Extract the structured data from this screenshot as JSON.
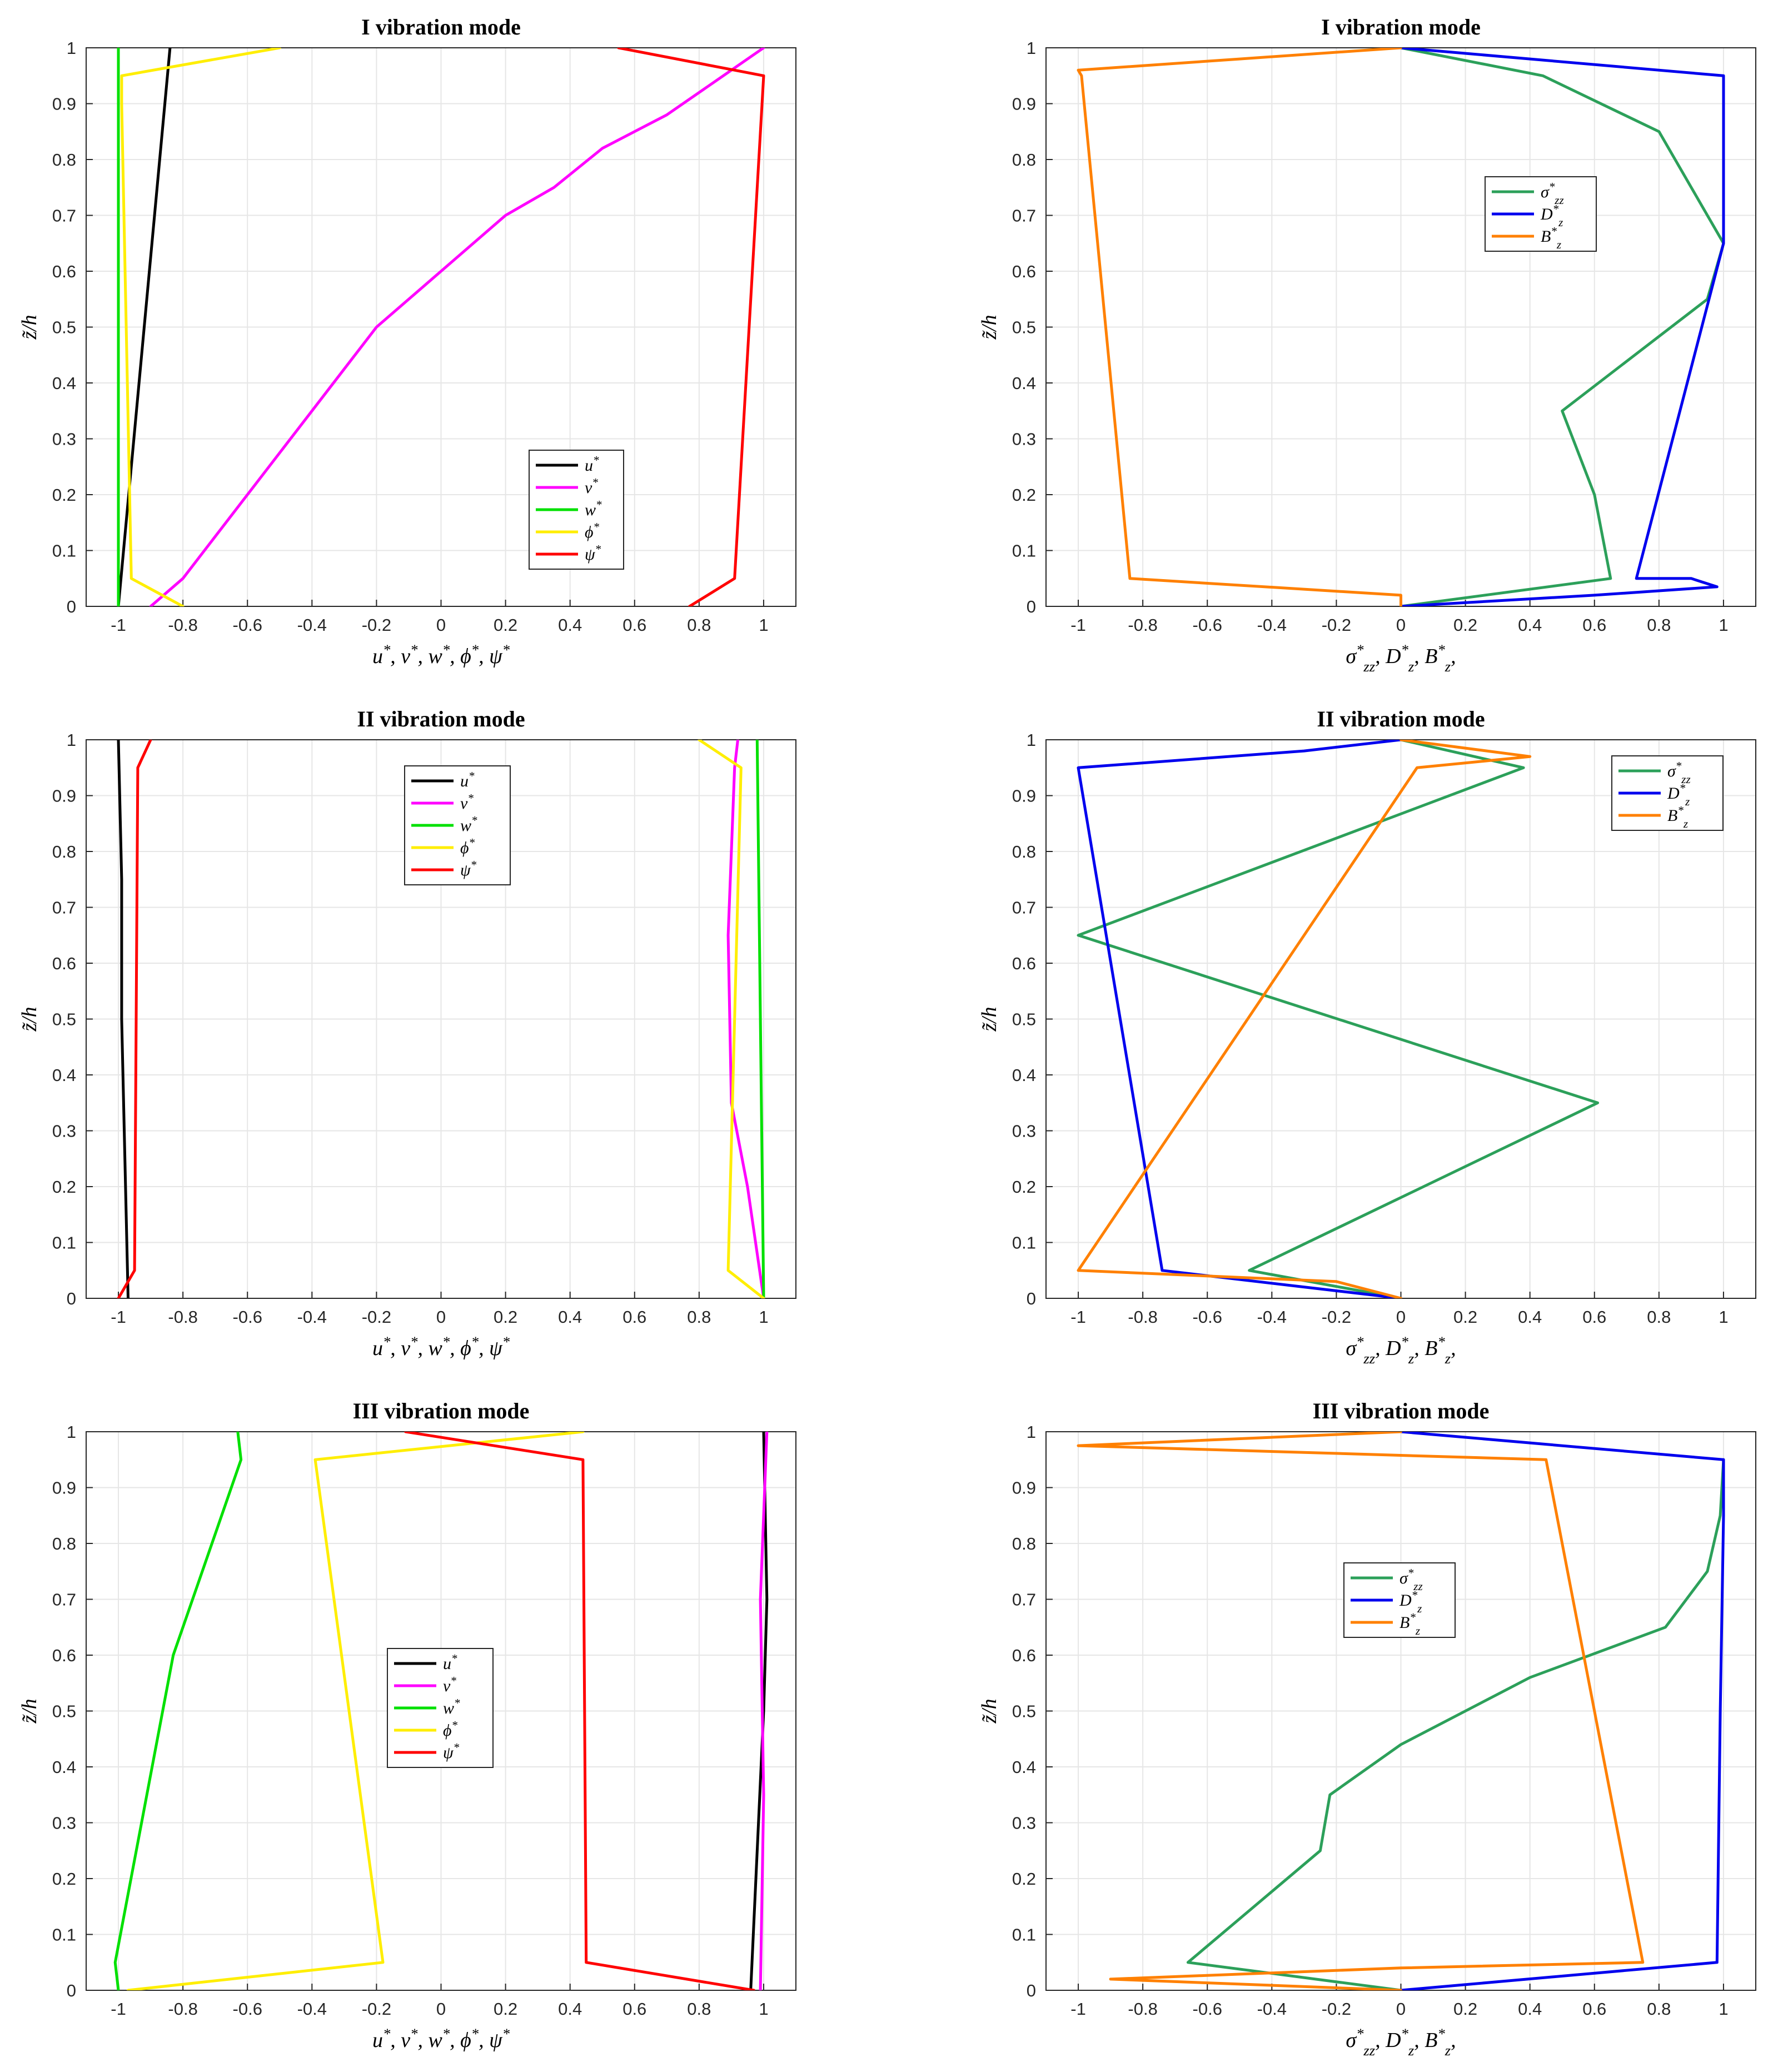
{
  "chart_data": [
    {
      "id": "p1",
      "type": "line",
      "title": "I vibration mode",
      "xlabel": "u*, v*, w*, ϕ*, ψ*",
      "ylabel": "z̃/h",
      "xlim": [
        -1.1,
        1.1
      ],
      "ylim": [
        0,
        1
      ],
      "xticks": [
        "-1",
        "-0.8",
        "-0.6",
        "-0.4",
        "-0.2",
        "0",
        "0.2",
        "0.4",
        "0.6",
        "0.8",
        "1"
      ],
      "yticks": [
        "0",
        "0.1",
        "0.2",
        "0.3",
        "0.4",
        "0.5",
        "0.6",
        "0.7",
        "0.8",
        "0.9",
        "1"
      ],
      "grid": true,
      "legend_position": "lower-right",
      "series": [
        {
          "name": "u*",
          "color": "#000000",
          "x": [
            -1.0,
            -0.84
          ],
          "y": [
            0,
            1
          ]
        },
        {
          "name": "v*",
          "color": "#ff00ff",
          "x": [
            -0.9,
            -0.8,
            -0.6,
            -0.4,
            -0.2,
            0.0,
            0.2,
            0.35,
            0.5,
            0.7,
            0.85,
            1.0
          ],
          "y": [
            0,
            0.05,
            0.2,
            0.35,
            0.5,
            0.6,
            0.7,
            0.75,
            0.82,
            0.88,
            0.94,
            1.0
          ]
        },
        {
          "name": "w*",
          "color": "#00e000",
          "x": [
            -1.0,
            -1.0
          ],
          "y": [
            0,
            1
          ]
        },
        {
          "name": "ϕ*",
          "color": "#ffee00",
          "x": [
            -0.8,
            -0.96,
            -0.99,
            -0.99,
            -0.5
          ],
          "y": [
            0,
            0.05,
            0.9,
            0.95,
            1.0
          ]
        },
        {
          "name": "ψ*",
          "color": "#ff0000",
          "x": [
            0.77,
            0.91,
            1.0,
            0.55
          ],
          "y": [
            0,
            0.05,
            0.95,
            1.0
          ]
        }
      ]
    },
    {
      "id": "p2",
      "type": "line",
      "title": "I vibration mode",
      "xlabel": "σ*zz, D*z, B*z,",
      "ylabel": "z̃/h",
      "xlim": [
        -1.1,
        1.1
      ],
      "ylim": [
        0,
        1
      ],
      "xticks": [
        "-1",
        "-0.8",
        "-0.6",
        "-0.4",
        "-0.2",
        "0",
        "0.2",
        "0.4",
        "0.6",
        "0.8",
        "1"
      ],
      "yticks": [
        "0",
        "0.1",
        "0.2",
        "0.3",
        "0.4",
        "0.5",
        "0.6",
        "0.7",
        "0.8",
        "0.9",
        "1"
      ],
      "grid": true,
      "legend_position": "center-right",
      "series": [
        {
          "name": "σ*zz",
          "color": "#2ca05a",
          "x": [
            0.0,
            0.65,
            0.6,
            0.5,
            0.95,
            1.0,
            0.8,
            0.44,
            0.0
          ],
          "y": [
            0,
            0.05,
            0.2,
            0.35,
            0.55,
            0.65,
            0.85,
            0.95,
            1.0
          ]
        },
        {
          "name": "D*z",
          "color": "#0000ee",
          "x": [
            0.0,
            0.6,
            0.98,
            0.9,
            0.73,
            1.0,
            1.0,
            0.0
          ],
          "y": [
            0,
            0.02,
            0.035,
            0.05,
            0.05,
            0.65,
            0.95,
            1.0
          ]
        },
        {
          "name": "B*z",
          "color": "#ff8000",
          "x": [
            0.0,
            0.0,
            -0.84,
            -0.99,
            -1.0,
            -0.5,
            0.0
          ],
          "y": [
            0,
            0.02,
            0.05,
            0.95,
            0.96,
            0.98,
            1.0
          ]
        }
      ]
    },
    {
      "id": "p3",
      "type": "line",
      "title": "II vibration mode",
      "xlabel": "u*, v*, w*, ϕ*, ψ*",
      "ylabel": "z̃/h",
      "xlim": [
        -1.1,
        1.1
      ],
      "ylim": [
        0,
        1
      ],
      "xticks": [
        "-1",
        "-0.8",
        "-0.6",
        "-0.4",
        "-0.2",
        "0",
        "0.2",
        "0.4",
        "0.6",
        "0.8",
        "1"
      ],
      "yticks": [
        "0",
        "0.1",
        "0.2",
        "0.3",
        "0.4",
        "0.5",
        "0.6",
        "0.7",
        "0.8",
        "0.9",
        "1"
      ],
      "grid": true,
      "legend_position": "top-center",
      "series": [
        {
          "name": "u*",
          "color": "#000000",
          "x": [
            -0.97,
            -0.98,
            -0.99,
            -0.99,
            -1.0
          ],
          "y": [
            0,
            0.25,
            0.5,
            0.75,
            1.0
          ]
        },
        {
          "name": "v*",
          "color": "#ff00ff",
          "x": [
            1.0,
            0.95,
            0.9,
            0.89,
            0.91,
            0.92
          ],
          "y": [
            0,
            0.2,
            0.35,
            0.65,
            0.95,
            1.0
          ]
        },
        {
          "name": "w*",
          "color": "#00e000",
          "x": [
            1.0,
            0.99,
            0.98
          ],
          "y": [
            0,
            0.5,
            1.0
          ]
        },
        {
          "name": "ϕ*",
          "color": "#ffee00",
          "x": [
            1.0,
            0.89,
            0.93,
            0.8
          ],
          "y": [
            0,
            0.05,
            0.95,
            1.0
          ]
        },
        {
          "name": "ψ*",
          "color": "#ff0000",
          "x": [
            -1.0,
            -0.95,
            -0.94,
            -0.9
          ],
          "y": [
            0,
            0.05,
            0.95,
            1.0
          ]
        }
      ]
    },
    {
      "id": "p4",
      "type": "line",
      "title": "II vibration mode",
      "xlabel": "σ*zz, D*z, B*z,",
      "ylabel": "z̃/h",
      "xlim": [
        -1.1,
        1.1
      ],
      "ylim": [
        0,
        1
      ],
      "xticks": [
        "-1",
        "-0.8",
        "-0.6",
        "-0.4",
        "-0.2",
        "0",
        "0.2",
        "0.4",
        "0.6",
        "0.8",
        "1"
      ],
      "yticks": [
        "0",
        "0.1",
        "0.2",
        "0.3",
        "0.4",
        "0.5",
        "0.6",
        "0.7",
        "0.8",
        "0.9",
        "1"
      ],
      "grid": true,
      "legend_position": "top-right",
      "series": [
        {
          "name": "σ*zz",
          "color": "#2ca05a",
          "x": [
            0.0,
            -0.47,
            0.61,
            -1.0,
            0.38,
            0.0
          ],
          "y": [
            0,
            0.05,
            0.35,
            0.65,
            0.95,
            1.0
          ]
        },
        {
          "name": "D*z",
          "color": "#0000ee",
          "x": [
            0.0,
            -0.74,
            -1.0,
            -0.3,
            0.0
          ],
          "y": [
            0,
            0.05,
            0.95,
            0.98,
            1.0
          ]
        },
        {
          "name": "B*z",
          "color": "#ff8000",
          "x": [
            0.0,
            -0.2,
            -1.0,
            0.05,
            0.4,
            0.0
          ],
          "y": [
            0,
            0.03,
            0.05,
            0.95,
            0.97,
            1.0
          ]
        }
      ]
    },
    {
      "id": "p5",
      "type": "line",
      "title": "III vibration mode",
      "xlabel": "u*, v*, w*, ϕ*, ψ*",
      "ylabel": "z̃/h",
      "xlim": [
        -1.1,
        1.1
      ],
      "ylim": [
        0,
        1
      ],
      "xticks": [
        "-1",
        "-0.8",
        "-0.6",
        "-0.4",
        "-0.2",
        "0",
        "0.2",
        "0.4",
        "0.6",
        "0.8",
        "1"
      ],
      "yticks": [
        "0",
        "0.1",
        "0.2",
        "0.3",
        "0.4",
        "0.5",
        "0.6",
        "0.7",
        "0.8",
        "0.9",
        "1"
      ],
      "grid": true,
      "legend_position": "center",
      "series": [
        {
          "name": "u*",
          "color": "#000000",
          "x": [
            0.96,
            1.0,
            1.01,
            1.0
          ],
          "y": [
            0,
            0.5,
            0.7,
            1.0
          ]
        },
        {
          "name": "v*",
          "color": "#ff00ff",
          "x": [
            0.99,
            1.0,
            0.99,
            1.01
          ],
          "y": [
            0,
            0.35,
            0.7,
            1.0
          ]
        },
        {
          "name": "w*",
          "color": "#00e000",
          "x": [
            -1.0,
            -1.01,
            -0.83,
            -0.62,
            -0.63
          ],
          "y": [
            0,
            0.05,
            0.6,
            0.95,
            1.0
          ]
        },
        {
          "name": "ϕ*",
          "color": "#ffee00",
          "x": [
            -0.97,
            -0.18,
            -0.39,
            0.44
          ],
          "y": [
            0,
            0.05,
            0.95,
            1.0
          ]
        },
        {
          "name": "ψ*",
          "color": "#ff0000",
          "x": [
            0.97,
            0.45,
            0.44,
            -0.11
          ],
          "y": [
            0,
            0.05,
            0.95,
            1.0
          ]
        }
      ]
    },
    {
      "id": "p6",
      "type": "line",
      "title": "III vibration mode",
      "xlabel": "σ*zz, D*z, B*z,",
      "ylabel": "z̃/h",
      "xlim": [
        -1.1,
        1.1
      ],
      "ylim": [
        0,
        1
      ],
      "xticks": [
        "-1",
        "-0.8",
        "-0.6",
        "-0.4",
        "-0.2",
        "0",
        "0.2",
        "0.4",
        "0.6",
        "0.8",
        "1"
      ],
      "yticks": [
        "0",
        "0.1",
        "0.2",
        "0.3",
        "0.4",
        "0.5",
        "0.6",
        "0.7",
        "0.8",
        "0.9",
        "1"
      ],
      "grid": true,
      "legend_position": "center",
      "series": [
        {
          "name": "σ*zz",
          "color": "#2ca05a",
          "x": [
            0.0,
            -0.66,
            -0.25,
            -0.22,
            0.0,
            0.4,
            0.82,
            0.95,
            0.99,
            1.0
          ],
          "y": [
            0,
            0.05,
            0.25,
            0.35,
            0.44,
            0.56,
            0.65,
            0.75,
            0.85,
            0.95
          ]
        },
        {
          "name": "D*z",
          "color": "#0000ee",
          "x": [
            0.0,
            0.98,
            0.99,
            1.0,
            1.0,
            0.0
          ],
          "y": [
            0,
            0.05,
            0.5,
            0.85,
            0.95,
            1.0
          ]
        },
        {
          "name": "B*z",
          "color": "#ff8000",
          "x": [
            0.0,
            -0.9,
            0.0,
            0.75,
            0.45,
            -1.0,
            0.0
          ],
          "y": [
            0,
            0.02,
            0.04,
            0.05,
            0.95,
            0.975,
            1.0
          ]
        }
      ]
    }
  ]
}
